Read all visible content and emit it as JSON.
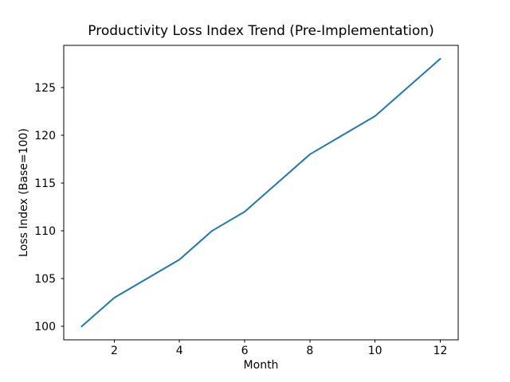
{
  "figure": {
    "background": "#ffffff"
  },
  "chart_data": {
    "type": "line",
    "title": "Productivity Loss Index Trend (Pre-Implementation)",
    "xlabel": "Month",
    "ylabel": "Loss Index (Base=100)",
    "x": [
      1,
      2,
      3,
      4,
      5,
      6,
      7,
      8,
      9,
      10,
      11,
      12
    ],
    "series": [
      {
        "values": [
          100,
          103,
          105,
          107,
          110,
          112,
          115,
          118,
          120,
          122,
          125,
          128
        ],
        "color": "#1f77b4"
      }
    ],
    "xticks": [
      2,
      4,
      6,
      8,
      10,
      12
    ],
    "yticks": [
      100,
      105,
      110,
      115,
      120,
      125
    ],
    "xlim": [
      0.45,
      12.55
    ],
    "ylim": [
      98.6,
      129.4
    ],
    "grid": false,
    "legend_position": "none",
    "spine_color": "#000000",
    "tick_color": "#000000"
  }
}
